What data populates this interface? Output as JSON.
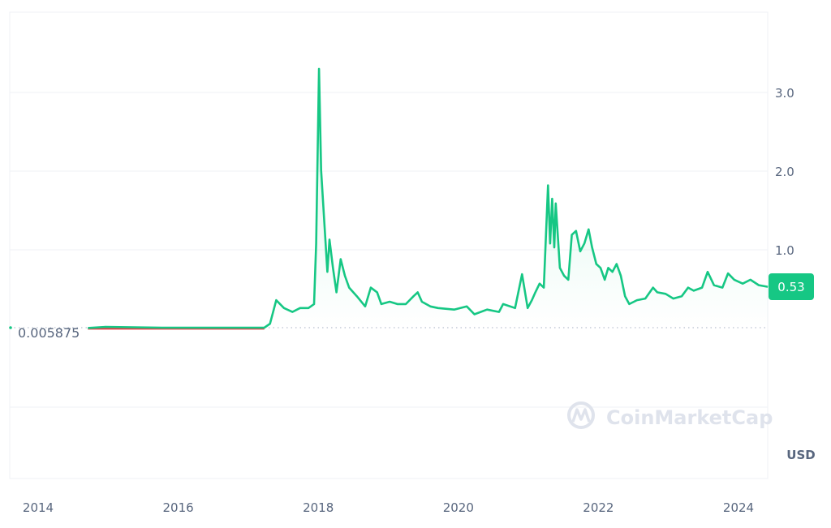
{
  "chart_data": {
    "type": "line",
    "title": "",
    "xlabel": "",
    "ylabel": "",
    "currency_label": "USD",
    "x_ticks": [
      "2014",
      "2016",
      "2018",
      "2020",
      "2022",
      "2024"
    ],
    "y_ticks": [
      "1.0",
      "2.0",
      "3.0"
    ],
    "ylim": [
      0,
      3.9
    ],
    "xlim": [
      2013.6,
      2024.42
    ],
    "grid": true,
    "baseline_value": 0.005875,
    "baseline_label": "0.005875",
    "current_price_label": "0.53",
    "watermark": "CoinMarketCap",
    "colors": {
      "up": "#16c784",
      "down": "#ea3943",
      "grid": "#eff2f5",
      "axis_text": "#58667e",
      "watermark": "#dfe3ec"
    },
    "series": [
      {
        "x": [
          2014.71,
          2014.96,
          2015.77,
          2017.23,
          2017.31,
          2017.4,
          2017.51,
          2017.63,
          2017.74,
          2017.86,
          2017.94,
          2017.97,
          2018.01,
          2018.04,
          2018.09,
          2018.13,
          2018.16,
          2018.21,
          2018.26,
          2018.32,
          2018.38,
          2018.44,
          2018.55,
          2018.67,
          2018.75,
          2018.84,
          2018.9,
          2019.02,
          2019.13,
          2019.25,
          2019.36,
          2019.42,
          2019.48,
          2019.6,
          2019.71,
          2019.94,
          2020.12,
          2020.23,
          2020.41,
          2020.58,
          2020.64,
          2020.81,
          2020.91,
          2020.99,
          2021.05,
          2021.1,
          2021.16,
          2021.22,
          2021.28,
          2021.31,
          2021.34,
          2021.37,
          2021.39,
          2021.45,
          2021.51,
          2021.57,
          2021.62,
          2021.68,
          2021.74,
          2021.8,
          2021.86,
          2021.91,
          2021.97,
          2022.03,
          2022.09,
          2022.14,
          2022.2,
          2022.26,
          2022.32,
          2022.38,
          2022.44,
          2022.55,
          2022.67,
          2022.78,
          2022.84,
          2022.96,
          2023.07,
          2023.19,
          2023.28,
          2023.36,
          2023.48,
          2023.56,
          2023.65,
          2023.77,
          2023.85,
          2023.94,
          2024.06,
          2024.17,
          2024.29,
          2024.42
        ],
        "y": [
          0.006,
          0.02,
          0.01,
          0.01,
          0.06,
          0.36,
          0.26,
          0.21,
          0.26,
          0.26,
          0.31,
          1.08,
          3.3,
          2.01,
          1.29,
          0.72,
          1.13,
          0.77,
          0.46,
          0.88,
          0.67,
          0.52,
          0.41,
          0.28,
          0.52,
          0.46,
          0.31,
          0.34,
          0.31,
          0.31,
          0.41,
          0.46,
          0.34,
          0.28,
          0.26,
          0.24,
          0.28,
          0.18,
          0.24,
          0.21,
          0.31,
          0.26,
          0.69,
          0.26,
          0.36,
          0.46,
          0.57,
          0.52,
          1.82,
          1.08,
          1.65,
          1.03,
          1.59,
          0.77,
          0.67,
          0.62,
          1.19,
          1.24,
          0.98,
          1.08,
          1.26,
          1.03,
          0.82,
          0.77,
          0.62,
          0.77,
          0.72,
          0.82,
          0.67,
          0.41,
          0.31,
          0.36,
          0.38,
          0.52,
          0.46,
          0.44,
          0.38,
          0.41,
          0.52,
          0.48,
          0.52,
          0.72,
          0.55,
          0.52,
          0.7,
          0.62,
          0.57,
          0.62,
          0.55,
          0.53
        ]
      }
    ]
  }
}
